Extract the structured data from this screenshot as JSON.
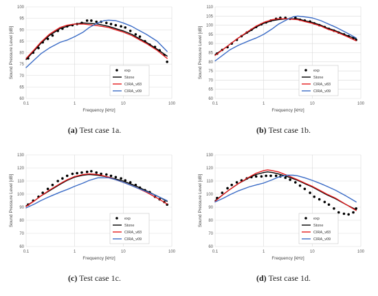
{
  "colors": {
    "exp": "#000000",
    "stone": "#000000",
    "cira_v83": "#e31a1c",
    "cira_v09": "#3a6bc6",
    "grid": "#d9d9d9"
  },
  "chart_data": [
    {
      "type": "line",
      "caption_label": "(a)",
      "caption_text": "Test case 1a.",
      "xlabel": "Frequency [kHz]",
      "ylabel": "Sound Pressure Level [dB]",
      "xscale": "log",
      "xlim": [
        0.1,
        100
      ],
      "xticks": [
        0.1,
        1,
        10,
        100
      ],
      "xtick_labels": [
        "0.1",
        "1",
        "10",
        "100"
      ],
      "ylim": [
        60,
        100
      ],
      "yticks": [
        60,
        65,
        70,
        75,
        80,
        85,
        90,
        95,
        100
      ],
      "legend_position": "bottom-right",
      "series": [
        {
          "name": "exp",
          "style": "markers",
          "x": [
            0.11,
            0.14,
            0.18,
            0.22,
            0.28,
            0.35,
            0.45,
            0.56,
            0.7,
            0.9,
            1.12,
            1.4,
            1.8,
            2.2,
            2.8,
            3.5,
            4.5,
            5.6,
            7,
            9,
            11,
            14,
            18,
            22,
            28,
            35,
            45,
            56,
            70,
            80
          ],
          "y": [
            77.5,
            80,
            82,
            84.5,
            86,
            87.5,
            89.5,
            90.5,
            91.5,
            92,
            92.5,
            93,
            94,
            94,
            93.5,
            93.5,
            93,
            92.5,
            92,
            91.5,
            91,
            89.5,
            88,
            87,
            85,
            83.5,
            82.5,
            81,
            79,
            76
          ]
        },
        {
          "name": "Stone",
          "style": "line",
          "x": [
            0.1,
            0.15,
            0.2,
            0.3,
            0.5,
            0.7,
            1,
            1.5,
            2,
            3,
            5,
            7,
            10,
            15,
            20,
            30,
            50,
            80
          ],
          "y": [
            77,
            81,
            84,
            87.5,
            90.5,
            91.5,
            92.5,
            93,
            92.8,
            92.5,
            91.5,
            90.5,
            89.5,
            88,
            86.5,
            84.5,
            81.5,
            78.5
          ]
        },
        {
          "name": "CIRA_v83",
          "style": "line",
          "x": [
            0.1,
            0.15,
            0.2,
            0.3,
            0.5,
            0.7,
            1,
            1.5,
            2,
            3,
            5,
            7,
            10,
            15,
            20,
            30,
            50,
            80
          ],
          "y": [
            77.5,
            81.5,
            84.5,
            88,
            91,
            92,
            92.5,
            92.5,
            92.2,
            91.8,
            91,
            90,
            89,
            87.5,
            86,
            84,
            81,
            77.5
          ]
        },
        {
          "name": "CIRA_v09",
          "style": "line",
          "x": [
            0.1,
            0.15,
            0.2,
            0.3,
            0.5,
            0.7,
            1,
            1.5,
            2,
            3,
            4,
            5,
            7,
            10,
            15,
            20,
            30,
            50,
            80
          ],
          "y": [
            73.5,
            77,
            79.5,
            82,
            84.5,
            85.5,
            87,
            89,
            91,
            93,
            94,
            94.2,
            94,
            93,
            91.5,
            90,
            88,
            85,
            80.5
          ]
        }
      ]
    },
    {
      "type": "line",
      "caption_label": "(b)",
      "caption_text": "Test case 1b.",
      "xlabel": "Frequency [kHz]",
      "ylabel": "Sound Pressure Level [dB]",
      "xscale": "log",
      "xlim": [
        0.1,
        100
      ],
      "xticks": [
        0.1,
        1,
        10,
        100
      ],
      "xtick_labels": [
        "0.1",
        "1",
        "10",
        "100"
      ],
      "ylim": [
        60,
        110
      ],
      "yticks": [
        60,
        65,
        70,
        75,
        80,
        85,
        90,
        95,
        100,
        105,
        110
      ],
      "legend_position": "bottom-right",
      "series": [
        {
          "name": "exp",
          "style": "markers",
          "x": [
            0.11,
            0.14,
            0.18,
            0.22,
            0.28,
            0.35,
            0.45,
            0.56,
            0.7,
            0.9,
            1.12,
            1.4,
            1.8,
            2.2,
            2.8,
            3.5,
            4.5,
            5.6,
            7,
            9,
            11,
            14,
            18,
            22,
            28,
            35,
            45,
            56,
            70,
            80
          ],
          "y": [
            84.5,
            86.5,
            88,
            90,
            92,
            94,
            96,
            97.5,
            99,
            100.5,
            101.5,
            102.5,
            103.5,
            104,
            104,
            103.5,
            104,
            103,
            102.5,
            102,
            101,
            100,
            99,
            98,
            97,
            96,
            95,
            94,
            93,
            92
          ]
        },
        {
          "name": "Stone",
          "style": "line",
          "x": [
            0.1,
            0.15,
            0.2,
            0.3,
            0.5,
            0.7,
            1,
            1.5,
            2,
            3,
            5,
            7,
            10,
            15,
            20,
            30,
            50,
            80
          ],
          "y": [
            84,
            87,
            89.5,
            93,
            96.5,
            99,
            101,
            102.5,
            103,
            103.5,
            103.5,
            102.5,
            101.5,
            100,
            98.5,
            97,
            94.5,
            92.5
          ]
        },
        {
          "name": "CIRA_v83",
          "style": "line",
          "x": [
            0.1,
            0.15,
            0.2,
            0.3,
            0.5,
            0.7,
            1,
            1.5,
            2,
            3,
            5,
            7,
            10,
            15,
            20,
            30,
            50,
            80
          ],
          "y": [
            83.5,
            87,
            89.5,
            93,
            97,
            99.5,
            101.5,
            103,
            103.5,
            103.5,
            103,
            102,
            101,
            99.5,
            98,
            96.5,
            94,
            91.5
          ]
        },
        {
          "name": "CIRA_v09",
          "style": "line",
          "x": [
            0.1,
            0.15,
            0.2,
            0.3,
            0.5,
            0.7,
            1,
            1.5,
            2,
            3,
            4,
            5,
            7,
            10,
            15,
            20,
            30,
            50,
            80
          ],
          "y": [
            80.5,
            84,
            86.5,
            89,
            91.5,
            93,
            95,
            98,
            100.5,
            103,
            104.5,
            105,
            104.5,
            104,
            102.5,
            101,
            99,
            96,
            93
          ]
        }
      ]
    },
    {
      "type": "line",
      "caption_label": "(c)",
      "caption_text": "Test case 1c.",
      "xlabel": "Frequency [kHz]",
      "ylabel": "Sound Pressure Level [dB]",
      "xscale": "log",
      "xlim": [
        0.1,
        100
      ],
      "xticks": [
        0.1,
        1,
        10,
        100
      ],
      "xtick_labels": [
        "0.1",
        "1",
        "10",
        "100"
      ],
      "ylim": [
        60,
        130
      ],
      "yticks": [
        60,
        70,
        80,
        90,
        100,
        110,
        120,
        130
      ],
      "legend_position": "bottom-right",
      "series": [
        {
          "name": "exp",
          "style": "markers",
          "x": [
            0.11,
            0.14,
            0.18,
            0.22,
            0.28,
            0.35,
            0.45,
            0.56,
            0.7,
            0.9,
            1.12,
            1.4,
            1.8,
            2.2,
            2.8,
            3.5,
            4.5,
            5.6,
            7,
            9,
            11,
            14,
            18,
            22,
            28,
            35,
            45,
            56,
            70,
            80
          ],
          "y": [
            92,
            95,
            98,
            101,
            104,
            107,
            110,
            112,
            114,
            115.5,
            116,
            116.5,
            117,
            117.5,
            116.5,
            115.5,
            115,
            114,
            113,
            112,
            110.5,
            109,
            107,
            105,
            103,
            101.5,
            98,
            96,
            94,
            92
          ]
        },
        {
          "name": "Stone",
          "style": "line",
          "x": [
            0.1,
            0.15,
            0.2,
            0.3,
            0.5,
            0.7,
            1,
            1.5,
            2,
            3,
            5,
            7,
            10,
            15,
            20,
            30,
            50,
            80
          ],
          "y": [
            91,
            95,
            98.5,
            102.5,
            107.5,
            110.5,
            113,
            114.5,
            115,
            114.5,
            113,
            111.5,
            110,
            107.5,
            105.5,
            102.5,
            98.5,
            94.5
          ]
        },
        {
          "name": "CIRA_v83",
          "style": "line",
          "x": [
            0.1,
            0.15,
            0.2,
            0.3,
            0.5,
            0.7,
            1,
            1.5,
            2,
            3,
            5,
            7,
            10,
            15,
            20,
            30,
            50,
            80
          ],
          "y": [
            90.5,
            95,
            98.5,
            103,
            108,
            111,
            113.5,
            115,
            115.5,
            115,
            113,
            111,
            109,
            106.5,
            104.5,
            101.5,
            97,
            92.5
          ]
        },
        {
          "name": "CIRA_v09",
          "style": "line",
          "x": [
            0.1,
            0.15,
            0.2,
            0.3,
            0.5,
            0.7,
            1,
            1.5,
            2,
            3,
            5,
            7,
            10,
            15,
            20,
            30,
            50,
            80
          ],
          "y": [
            89.5,
            92.5,
            95,
            98,
            101.5,
            103.5,
            106,
            108.5,
            110.5,
            112.5,
            112.5,
            111,
            109,
            106.5,
            104.5,
            102,
            98.5,
            95
          ]
        }
      ]
    },
    {
      "type": "line",
      "caption_label": "(d)",
      "caption_text": "Test case 1d.",
      "xlabel": "Frequency [kHz]",
      "ylabel": "Sound Pressure Level [dB]",
      "xscale": "log",
      "xlim": [
        0.1,
        100
      ],
      "xticks": [
        0.1,
        1,
        10,
        100
      ],
      "xtick_labels": [
        "0.1",
        "1",
        "10",
        "100"
      ],
      "ylim": [
        60,
        130
      ],
      "yticks": [
        60,
        70,
        80,
        90,
        100,
        110,
        120,
        130
      ],
      "legend_position": "bottom-right",
      "series": [
        {
          "name": "exp",
          "style": "markers",
          "x": [
            0.11,
            0.14,
            0.18,
            0.22,
            0.28,
            0.35,
            0.45,
            0.56,
            0.7,
            0.9,
            1.12,
            1.4,
            1.8,
            2.2,
            2.8,
            3.5,
            4.5,
            5.6,
            7,
            9,
            11,
            14,
            18,
            22,
            28,
            35,
            45,
            56,
            70,
            80
          ],
          "y": [
            97,
            101,
            104.5,
            107,
            109,
            110.5,
            112,
            113,
            113.5,
            113.5,
            114,
            114,
            114,
            113.5,
            112.5,
            111,
            109,
            106.5,
            104,
            101,
            98,
            96,
            94,
            92,
            89,
            86,
            85,
            84.5,
            86,
            89
          ]
        },
        {
          "name": "Stone",
          "style": "line",
          "x": [
            0.1,
            0.15,
            0.2,
            0.3,
            0.5,
            0.7,
            1,
            1.2,
            1.5,
            2,
            3,
            5,
            7,
            10,
            15,
            20,
            30,
            50,
            80
          ],
          "y": [
            95,
            100,
            103.5,
            108,
            112.5,
            115,
            116.5,
            117,
            116.5,
            115.5,
            113.5,
            110.5,
            108,
            105.5,
            102,
            99.5,
            96.5,
            92,
            88
          ]
        },
        {
          "name": "CIRA_v83",
          "style": "line",
          "x": [
            0.1,
            0.15,
            0.2,
            0.3,
            0.5,
            0.7,
            1,
            1.2,
            1.5,
            2,
            3,
            5,
            7,
            10,
            15,
            20,
            30,
            50,
            80
          ],
          "y": [
            94.5,
            100,
            103.5,
            108,
            113,
            116,
            118,
            118.5,
            118,
            117,
            114.5,
            111,
            108.5,
            106,
            102.5,
            100,
            97,
            92,
            87.5
          ]
        },
        {
          "name": "CIRA_v09",
          "style": "line",
          "x": [
            0.1,
            0.15,
            0.2,
            0.3,
            0.5,
            0.7,
            1,
            1.5,
            2,
            3,
            4,
            5,
            7,
            10,
            15,
            20,
            30,
            50,
            80
          ],
          "y": [
            94,
            97,
            99.5,
            102.5,
            105.5,
            107,
            108.5,
            111,
            113,
            114.5,
            114.5,
            114,
            112.5,
            110.5,
            108,
            106,
            103,
            98.5,
            94
          ]
        }
      ]
    }
  ]
}
